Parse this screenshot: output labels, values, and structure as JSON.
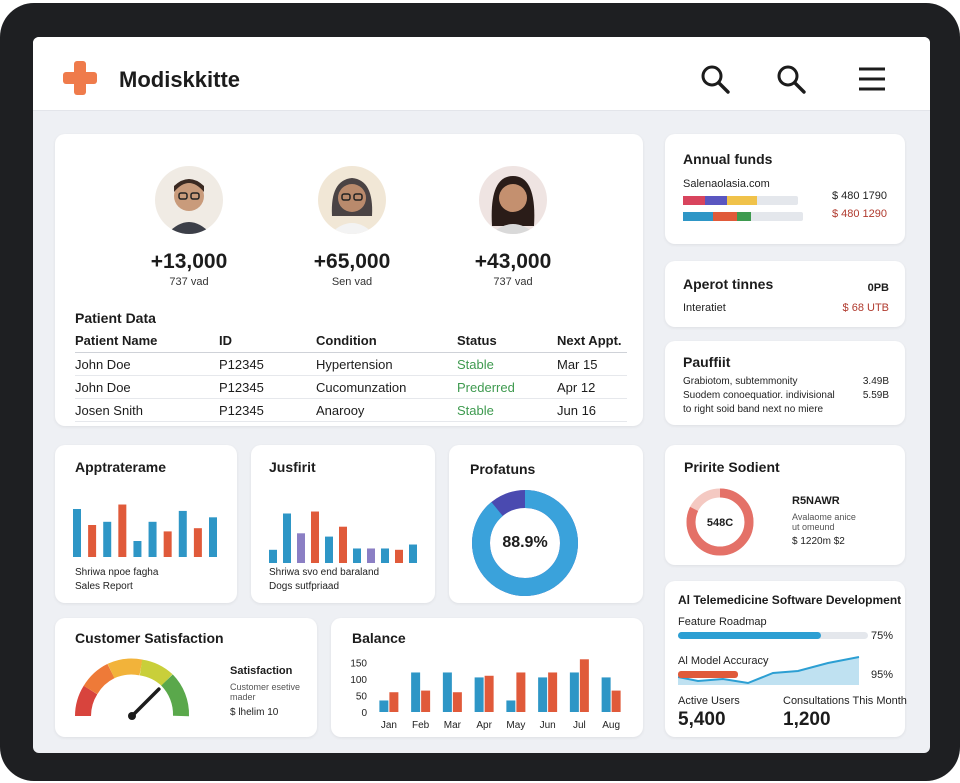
{
  "app": {
    "title": "Modiskkitte"
  },
  "stats": [
    {
      "value": "+13,000",
      "sub": "737 vad",
      "ring": "#2e96c6"
    },
    {
      "value": "+65,000",
      "sub": "Sen vad",
      "ring": "#e9a044"
    },
    {
      "value": "+43,000",
      "sub": "737 vad",
      "ring": "#d8445d"
    }
  ],
  "patient_data": {
    "title": "Patient Data",
    "headers": [
      "Patient Name",
      "ID",
      "Condition",
      "Status",
      "Next Appt."
    ],
    "rows": [
      [
        "John Doe",
        "P12345",
        "Hypertension",
        "Stable",
        "Mar 15"
      ],
      [
        "John Doe",
        "P12345",
        "Cucomunzation",
        "Prederred",
        "Apr 12"
      ],
      [
        "Josen Snith",
        "P12345",
        "Anarooy",
        "Stable",
        "Jun 16"
      ]
    ],
    "status_color": "#3e9a4f"
  },
  "annual_funds": {
    "title": "Annual funds",
    "site": "Salenaolasia.com",
    "values": [
      "$ 480 1790",
      "$ 480 1290"
    ]
  },
  "aperot": {
    "title": "Aperot tinnes",
    "badge": "0PB",
    "label": "Interatiet",
    "value": "$ 68 UTB"
  },
  "pauffiit": {
    "title": "Pauffiit",
    "lines": [
      {
        "text": "Grabiotom, subtemmonity",
        "value": "3.49B"
      },
      {
        "text": "Suodem conoequatior. indivisional",
        "value": "5.59B"
      },
      {
        "text": "to right soid band next no miere",
        "value": ""
      }
    ]
  },
  "apptrate": {
    "title": "Apptraterame",
    "caption1": "Shriwa npoe fagha",
    "caption2": "Sales Report",
    "bars": [
      {
        "v": 0.75,
        "c": "#2e96c6"
      },
      {
        "v": 0.5,
        "c": "#e05a3a"
      },
      {
        "v": 0.55,
        "c": "#2e96c6"
      },
      {
        "v": 0.82,
        "c": "#e05a3a"
      },
      {
        "v": 0.25,
        "c": "#2e96c6"
      },
      {
        "v": 0.55,
        "c": "#2e96c6"
      },
      {
        "v": 0.4,
        "c": "#e05a3a"
      },
      {
        "v": 0.72,
        "c": "#2e96c6"
      },
      {
        "v": 0.45,
        "c": "#e05a3a"
      },
      {
        "v": 0.62,
        "c": "#2e96c6"
      }
    ]
  },
  "jusfirit": {
    "title": "Jusfirit",
    "caption1": "Shriwa svo end baraland",
    "caption2": "Dogs sutfpriaad",
    "bars": [
      {
        "v": 0.2,
        "c": "#2e96c6"
      },
      {
        "v": 0.75,
        "c": "#2e96c6"
      },
      {
        "v": 0.45,
        "c": "#8b7fc4"
      },
      {
        "v": 0.78,
        "c": "#e05a3a"
      },
      {
        "v": 0.4,
        "c": "#2e96c6"
      },
      {
        "v": 0.55,
        "c": "#e05a3a"
      },
      {
        "v": 0.22,
        "c": "#2e96c6"
      },
      {
        "v": 0.22,
        "c": "#8b7fc4"
      },
      {
        "v": 0.22,
        "c": "#2e96c6"
      },
      {
        "v": 0.2,
        "c": "#e05a3a"
      },
      {
        "v": 0.28,
        "c": "#2e96c6"
      }
    ]
  },
  "profatuns": {
    "title": "Profatuns",
    "value_label": "88.9%",
    "value": 0.889,
    "colors": [
      "#3aa2db",
      "#4a4ab0"
    ]
  },
  "pririte": {
    "title": "Pririte Sodient",
    "center": "548C",
    "heading": "R5NAWR",
    "sub1": "Avalaome anice",
    "sub2": "ut omeund",
    "amount": "$ 1220m $2",
    "ring_color": "#e47168"
  },
  "ai_dev": {
    "title": "Al Telemedicine Software Development",
    "roadmap_label": "Feature Roadmap",
    "roadmap_pct": "75%",
    "roadmap_value": 0.75,
    "accuracy_label": "Al Model Accuracy",
    "accuracy_pct": "95%",
    "active_label": "Active Users",
    "active_value": "5,400",
    "consult_label": "Consultations This Month",
    "consult_value": "1,200"
  },
  "satisfaction": {
    "title": "Customer Satisfaction",
    "label": "Satisfaction",
    "sub1": "Customer esetive",
    "sub2": "mader",
    "value": "$ lhelim 10",
    "needle": 0.75
  },
  "chart_data": {
    "type": "bar",
    "title": "Balance",
    "categories": [
      "Jan",
      "Feb",
      "Mar",
      "Apr",
      "May",
      "Jun",
      "Jul",
      "Aug"
    ],
    "yticks": [
      "150",
      "100",
      "50",
      "0"
    ],
    "ylim": [
      0,
      170
    ],
    "series": [
      {
        "values": [
          35,
          120,
          120,
          105,
          35,
          105,
          120,
          105
        ],
        "color": "#2e96c6"
      },
      {
        "values": [
          60,
          65,
          60,
          110,
          120,
          120,
          160,
          65
        ],
        "color": "#e05a3a"
      }
    ]
  }
}
